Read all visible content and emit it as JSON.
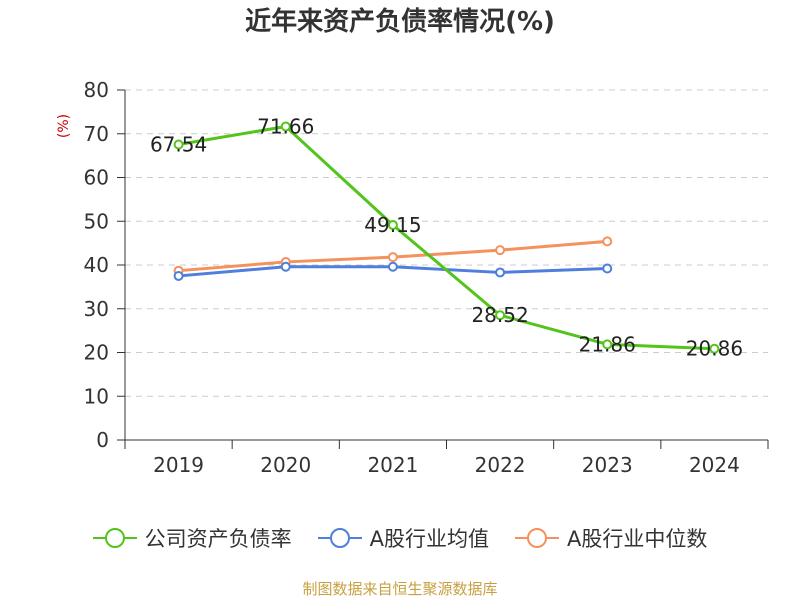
{
  "chart_data": {
    "type": "line",
    "title": "近年来资产负债率情况(%)",
    "y_unit": "(%)",
    "categories": [
      "2019",
      "2020",
      "2021",
      "2022",
      "2023",
      "2024"
    ],
    "ylim": [
      0,
      80
    ],
    "yticks": [
      0,
      10,
      20,
      30,
      40,
      50,
      60,
      70,
      80
    ],
    "grid": true,
    "legend_position": "bottom",
    "series": [
      {
        "name": "公司资产负债率",
        "color": "#52c41a",
        "values": [
          67.54,
          71.66,
          49.15,
          28.52,
          21.86,
          20.86
        ],
        "labels": [
          "67.54",
          "71.66",
          "49.15",
          "28.52",
          "21.86",
          "20.86"
        ],
        "show_labels": true
      },
      {
        "name": "A股行业均值",
        "color": "#4e7fdc",
        "values": [
          37.5,
          39.6,
          39.6,
          38.3,
          39.2,
          null
        ],
        "show_labels": false
      },
      {
        "name": "A股行业中位数",
        "color": "#f5915a",
        "values": [
          38.7,
          40.7,
          41.8,
          43.4,
          45.4,
          null
        ],
        "show_labels": false
      }
    ]
  },
  "source": "制图数据来自恒生聚源数据库"
}
